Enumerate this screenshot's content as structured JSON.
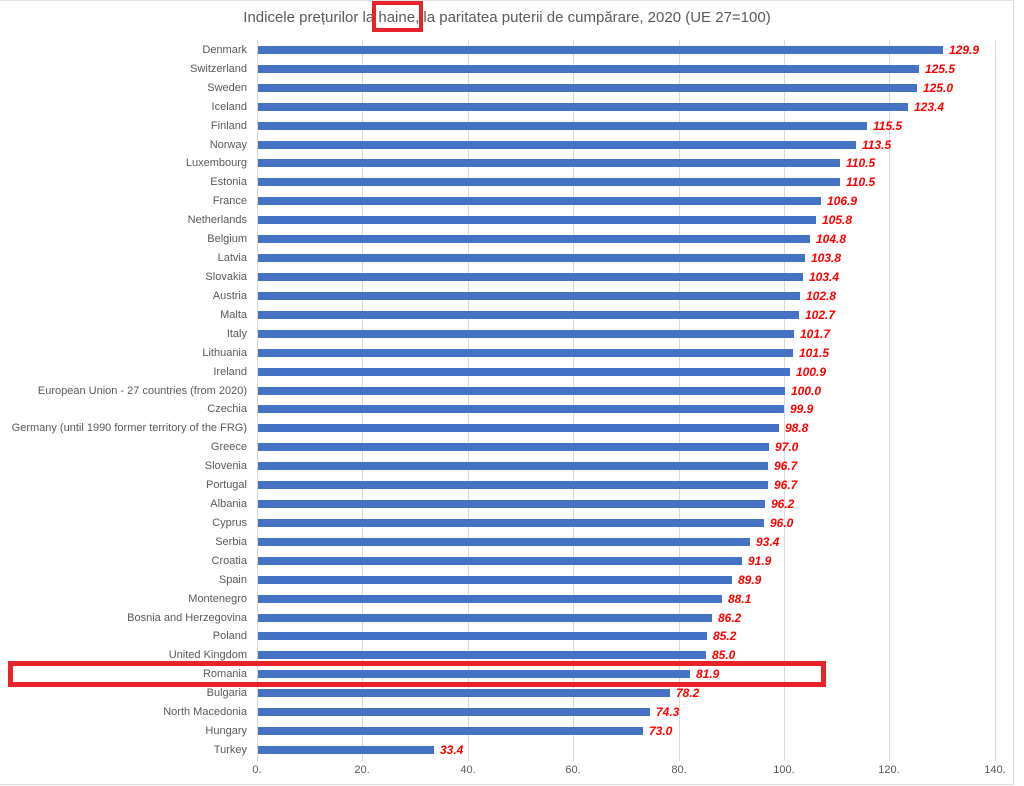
{
  "title": {
    "prefix": "Indicele prețurilor la ",
    "highlight": "haine",
    "suffix": ", la paritatea puterii de cumpărare, 2020 (UE 27=100)"
  },
  "chart_data": {
    "type": "bar",
    "orientation": "horizontal",
    "title": "Indicele prețurilor la haine, la paritatea puterii de cumpărare, 2020 (UE 27=100)",
    "categories": [
      "Denmark",
      "Switzerland",
      "Sweden",
      "Iceland",
      "Finland",
      "Norway",
      "Luxembourg",
      "Estonia",
      "France",
      "Netherlands",
      "Belgium",
      "Latvia",
      "Slovakia",
      "Austria",
      "Malta",
      "Italy",
      "Lithuania",
      "Ireland",
      "European Union - 27 countries (from 2020)",
      "Czechia",
      "Germany (until 1990 former territory of the FRG)",
      "Greece",
      "Slovenia",
      "Portugal",
      "Albania",
      "Cyprus",
      "Serbia",
      "Croatia",
      "Spain",
      "Montenegro",
      "Bosnia and Herzegovina",
      "Poland",
      "United Kingdom",
      "Romania",
      "Bulgaria",
      "North Macedonia",
      "Hungary",
      "Turkey"
    ],
    "values": [
      129.9,
      125.5,
      125.0,
      123.4,
      115.5,
      113.5,
      110.5,
      110.5,
      106.9,
      105.8,
      104.8,
      103.8,
      103.4,
      102.8,
      102.7,
      101.7,
      101.5,
      100.9,
      100.0,
      99.9,
      98.8,
      97.0,
      96.7,
      96.7,
      96.2,
      96.0,
      93.4,
      91.9,
      89.9,
      88.1,
      86.2,
      85.2,
      85.0,
      81.9,
      78.2,
      74.3,
      73.0,
      33.4
    ],
    "xlabel": "",
    "ylabel": "",
    "xlim": [
      0,
      140
    ],
    "x_ticks": [
      0,
      20,
      40,
      60,
      80,
      100,
      120,
      140
    ],
    "x_tick_labels": [
      "0.",
      "20.",
      "40.",
      "60.",
      "80.",
      "100.",
      "120.",
      "140."
    ],
    "grid": "vertical-gridlines-on",
    "legend": "none",
    "bar_color": "#4472c4",
    "value_label_color": "#ff0000",
    "category_label_color": "#595959",
    "gridline_color": "#d9d9d9",
    "annotation_color": "#e8232a",
    "annotations": [
      {
        "type": "red-box",
        "target": "title-word",
        "text": "haine"
      },
      {
        "type": "red-box",
        "target": "category-row",
        "text": "Romania"
      }
    ]
  }
}
